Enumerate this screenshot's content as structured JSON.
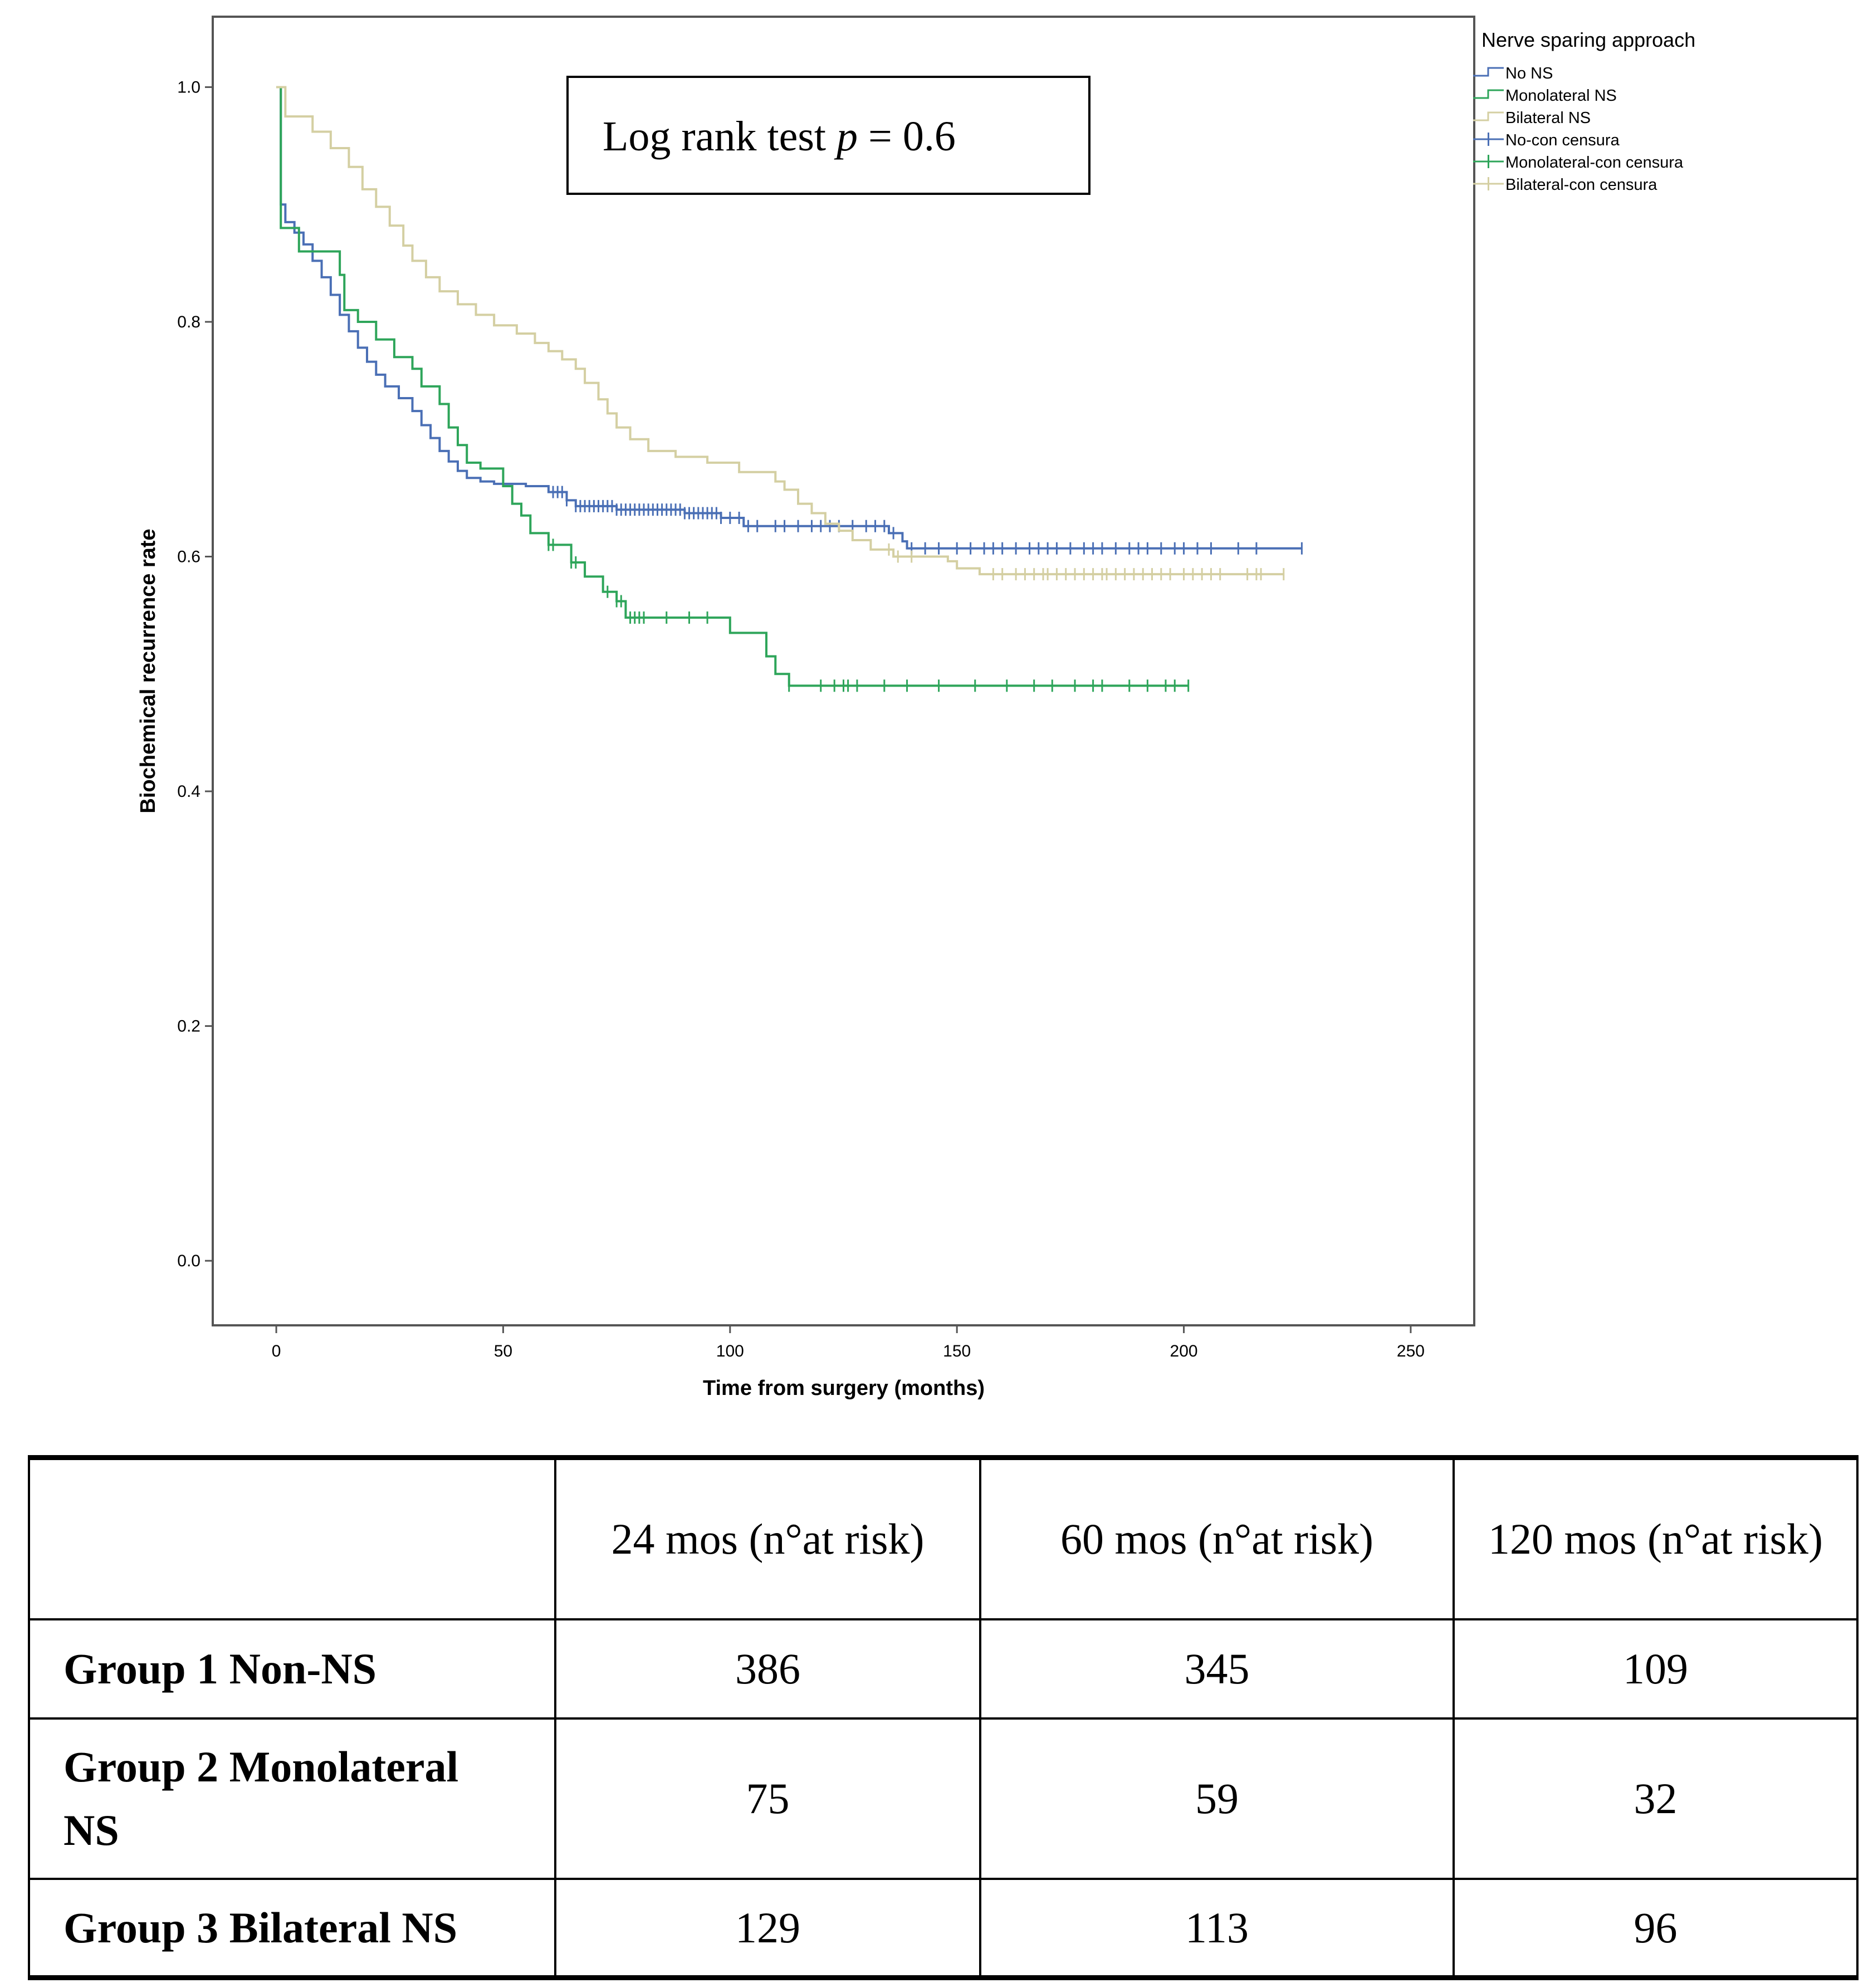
{
  "chart_data": {
    "type": "line",
    "subtype": "kaplan-meier step",
    "title": "",
    "xlabel": "Time from surgery (months)",
    "ylabel": "Biochemical recurrence rate",
    "xlim": [
      -14,
      264
    ],
    "ylim": [
      -0.055,
      1.06
    ],
    "xticks": [
      0,
      50,
      100,
      150,
      200,
      250
    ],
    "xtick_labels": [
      "0",
      "50",
      "100",
      "150",
      "200",
      "250"
    ],
    "yticks": [
      0.0,
      0.2,
      0.4,
      0.6,
      0.8,
      1.0
    ],
    "ytick_labels": [
      "0.0",
      "0.2",
      "0.4",
      "0.6",
      "0.8",
      "1.0"
    ],
    "annotation": {
      "prefix": "Log rank test ",
      "symbol": "p",
      "suffix": " = 0.6"
    },
    "legend": {
      "title": "Nerve sparing approach",
      "placement": "right",
      "entries": [
        "No NS",
        "Monolateral NS",
        "Bilateral NS",
        "No-con censura",
        "Monolateral-con censura",
        "Bilateral-con censura"
      ]
    },
    "series": [
      {
        "name": "No NS",
        "color": "#4a6fb5",
        "points": [
          [
            0,
            1.0
          ],
          [
            1,
            0.9
          ],
          [
            2,
            0.885
          ],
          [
            4,
            0.876
          ],
          [
            6,
            0.866
          ],
          [
            8,
            0.852
          ],
          [
            10,
            0.838
          ],
          [
            12,
            0.823
          ],
          [
            14,
            0.806
          ],
          [
            16,
            0.792
          ],
          [
            18,
            0.778
          ],
          [
            20,
            0.766
          ],
          [
            22,
            0.755
          ],
          [
            24,
            0.745
          ],
          [
            27,
            0.735
          ],
          [
            30,
            0.724
          ],
          [
            32,
            0.712
          ],
          [
            34,
            0.701
          ],
          [
            36,
            0.69
          ],
          [
            38,
            0.681
          ],
          [
            40,
            0.673
          ],
          [
            42,
            0.667
          ],
          [
            45,
            0.664
          ],
          [
            48,
            0.662
          ],
          [
            55,
            0.66
          ],
          [
            60,
            0.655
          ],
          [
            64,
            0.648
          ],
          [
            66,
            0.643
          ],
          [
            75,
            0.64
          ],
          [
            90,
            0.637
          ],
          [
            98,
            0.633
          ],
          [
            103,
            0.626
          ],
          [
            135,
            0.62
          ],
          [
            138,
            0.613
          ],
          [
            139,
            0.607
          ],
          [
            226,
            0.607
          ]
        ],
        "censored": [
          61,
          62,
          63,
          64,
          66,
          67,
          68,
          69,
          70,
          71,
          72,
          73,
          74,
          75,
          76,
          77,
          78,
          79,
          80,
          81,
          82,
          83,
          84,
          85,
          86,
          87,
          88,
          89,
          90,
          91,
          92,
          93,
          94,
          95,
          96,
          97,
          98,
          100,
          102,
          104,
          106,
          110,
          112,
          115,
          118,
          120,
          122,
          124,
          127,
          130,
          132,
          134,
          136,
          140,
          143,
          146,
          150,
          153,
          156,
          158,
          160,
          163,
          166,
          168,
          170,
          172,
          175,
          178,
          180,
          182,
          185,
          188,
          190,
          192,
          195,
          198,
          200,
          203,
          206,
          212,
          216,
          226
        ]
      },
      {
        "name": "Monolateral NS",
        "color": "#2ea55a",
        "points": [
          [
            0,
            1.0
          ],
          [
            1,
            0.88
          ],
          [
            5,
            0.86
          ],
          [
            14,
            0.84
          ],
          [
            15,
            0.81
          ],
          [
            18,
            0.8
          ],
          [
            22,
            0.785
          ],
          [
            26,
            0.77
          ],
          [
            30,
            0.76
          ],
          [
            32,
            0.745
          ],
          [
            36,
            0.73
          ],
          [
            38,
            0.71
          ],
          [
            40,
            0.695
          ],
          [
            42,
            0.68
          ],
          [
            45,
            0.675
          ],
          [
            50,
            0.66
          ],
          [
            52,
            0.645
          ],
          [
            54,
            0.635
          ],
          [
            56,
            0.62
          ],
          [
            60,
            0.61
          ],
          [
            65,
            0.595
          ],
          [
            68,
            0.583
          ],
          [
            72,
            0.57
          ],
          [
            75,
            0.562
          ],
          [
            77,
            0.548
          ],
          [
            100,
            0.535
          ],
          [
            108,
            0.515
          ],
          [
            110,
            0.5
          ],
          [
            113,
            0.49
          ],
          [
            201,
            0.49
          ]
        ],
        "censored": [
          60,
          61,
          65,
          66,
          73,
          75,
          76,
          78,
          79,
          80,
          81,
          86,
          91,
          95,
          113,
          120,
          123,
          125,
          126,
          128,
          134,
          139,
          146,
          154,
          161,
          167,
          171,
          176,
          180,
          182,
          188,
          192,
          196,
          198,
          201
        ]
      },
      {
        "name": "Bilateral NS",
        "color": "#d4cfa2",
        "points": [
          [
            0,
            1.0
          ],
          [
            2,
            0.975
          ],
          [
            8,
            0.962
          ],
          [
            12,
            0.948
          ],
          [
            16,
            0.932
          ],
          [
            19,
            0.913
          ],
          [
            22,
            0.898
          ],
          [
            25,
            0.882
          ],
          [
            28,
            0.865
          ],
          [
            30,
            0.852
          ],
          [
            33,
            0.838
          ],
          [
            36,
            0.826
          ],
          [
            40,
            0.815
          ],
          [
            44,
            0.806
          ],
          [
            48,
            0.797
          ],
          [
            53,
            0.79
          ],
          [
            57,
            0.782
          ],
          [
            60,
            0.775
          ],
          [
            63,
            0.768
          ],
          [
            66,
            0.76
          ],
          [
            68,
            0.748
          ],
          [
            71,
            0.734
          ],
          [
            73,
            0.722
          ],
          [
            75,
            0.71
          ],
          [
            78,
            0.7
          ],
          [
            82,
            0.69
          ],
          [
            88,
            0.685
          ],
          [
            95,
            0.68
          ],
          [
            102,
            0.672
          ],
          [
            110,
            0.664
          ],
          [
            112,
            0.657
          ],
          [
            115,
            0.645
          ],
          [
            118,
            0.637
          ],
          [
            121,
            0.628
          ],
          [
            124,
            0.622
          ],
          [
            127,
            0.614
          ],
          [
            131,
            0.606
          ],
          [
            136,
            0.6
          ],
          [
            148,
            0.596
          ],
          [
            150,
            0.59
          ],
          [
            155,
            0.585
          ],
          [
            222,
            0.585
          ]
        ],
        "censored": [
          135,
          137,
          140,
          158,
          160,
          163,
          165,
          167,
          169,
          170,
          172,
          174,
          176,
          178,
          180,
          182,
          183,
          185,
          187,
          189,
          191,
          193,
          195,
          197,
          200,
          202,
          204,
          206,
          208,
          214,
          216,
          217,
          222
        ]
      }
    ]
  },
  "risk_table": {
    "headers": [
      "",
      "24 mos (n°at risk)",
      "60 mos (n°at risk)",
      "120 mos (n°at risk)"
    ],
    "rows": [
      {
        "label": "Group 1 Non-NS",
        "values": [
          "386",
          "345",
          "109"
        ]
      },
      {
        "label": "Group 2 Monolateral NS",
        "values": [
          "75",
          "59",
          "32"
        ]
      },
      {
        "label": "Group 3 Bilateral NS",
        "values": [
          "129",
          "113",
          "96"
        ]
      }
    ]
  }
}
